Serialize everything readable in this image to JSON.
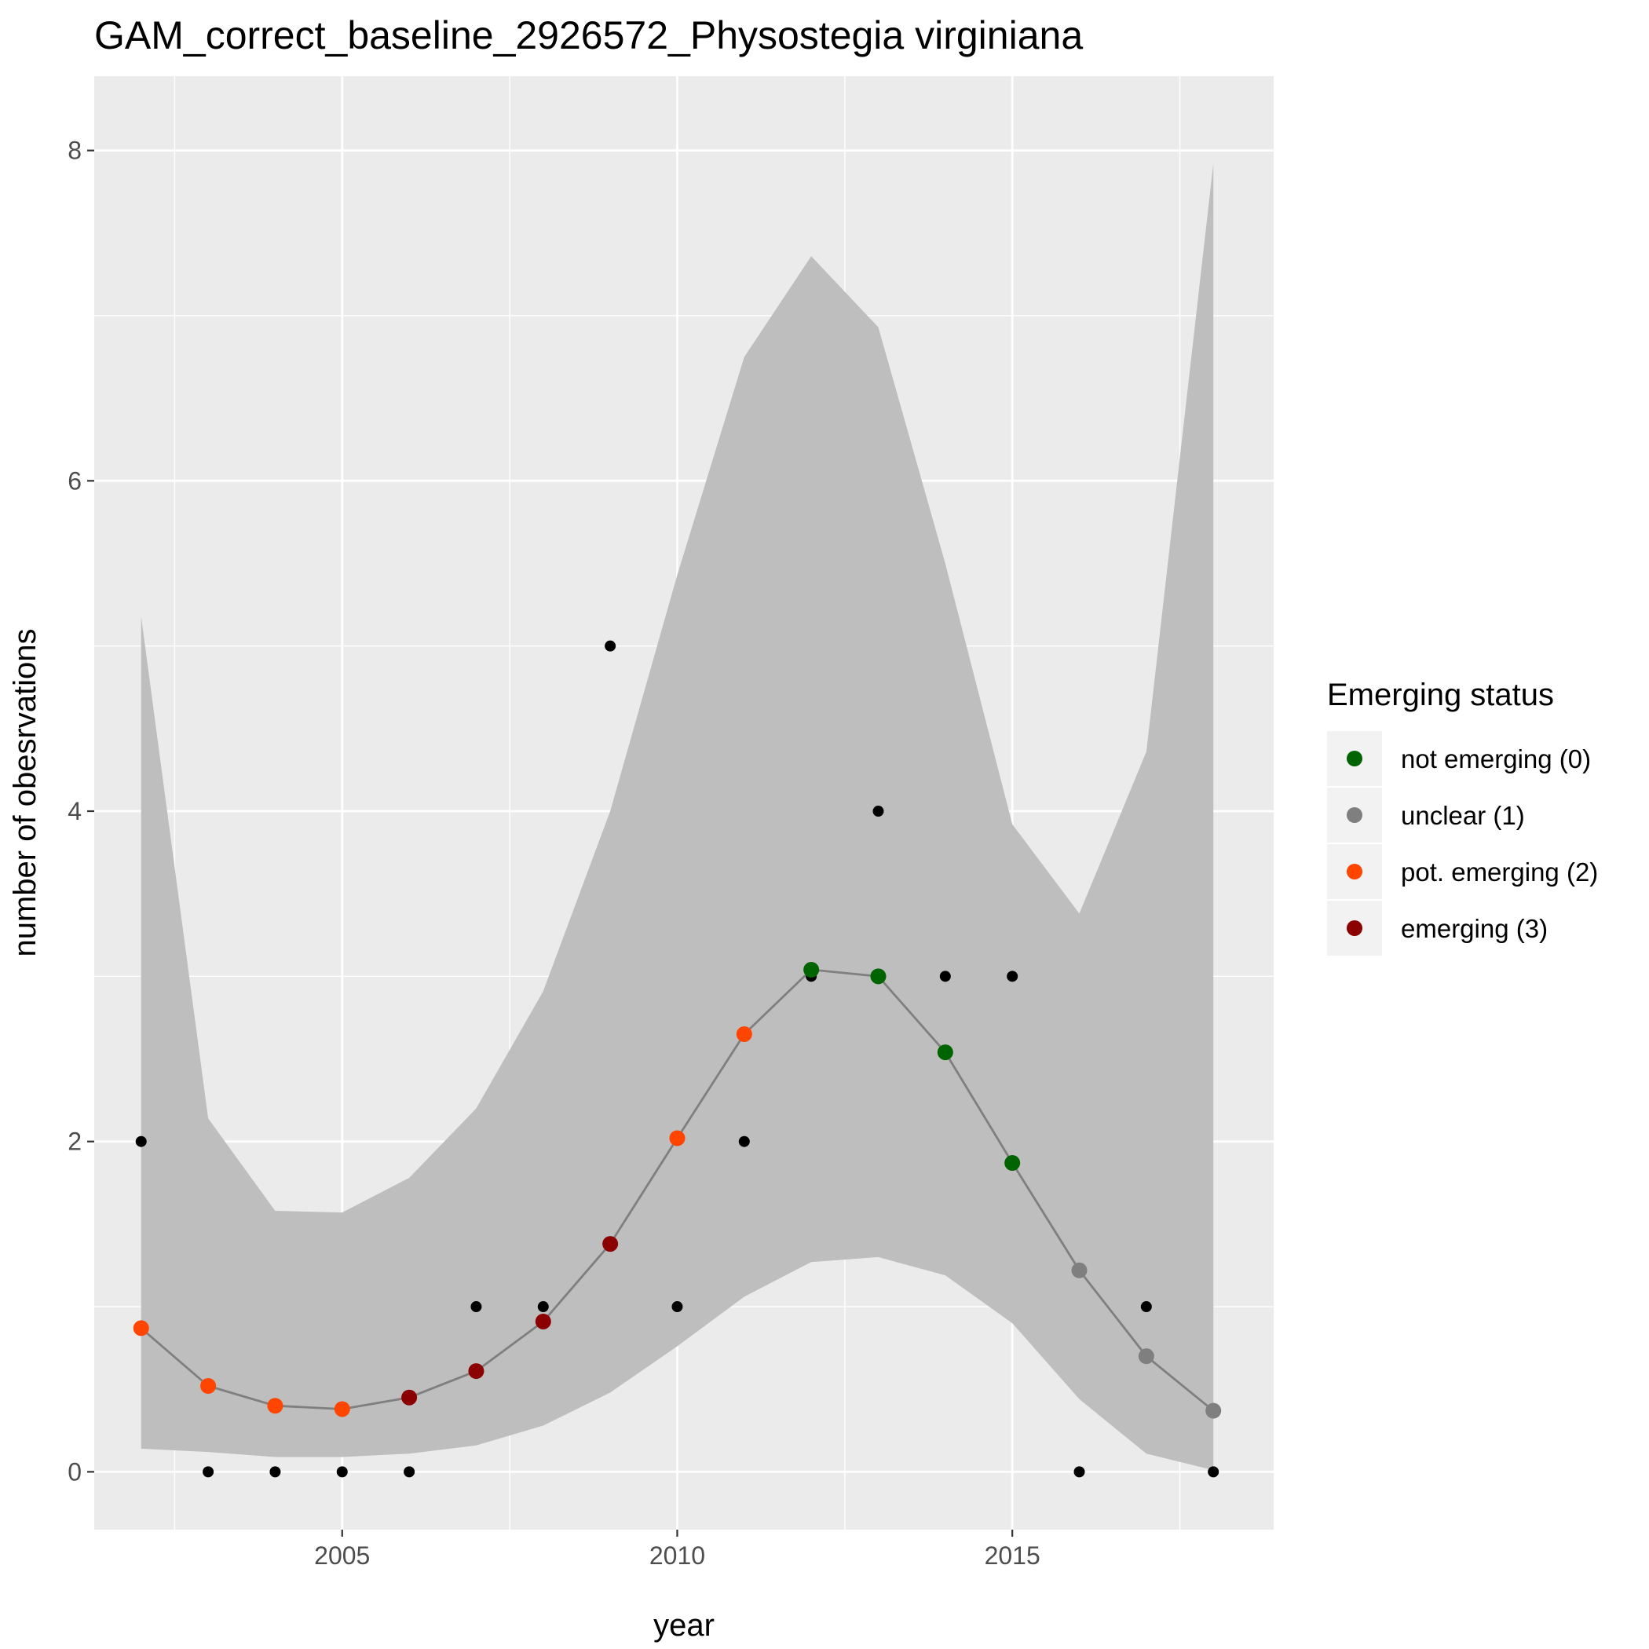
{
  "chart_data": {
    "type": "line",
    "title": "GAM_correct_baseline_2926572_Physostegia virginiana",
    "xlabel": "year",
    "ylabel": "number of obesrvations",
    "xlim": [
      2001.3,
      2018.9
    ],
    "ylim": [
      -0.35,
      8.45
    ],
    "x_ticks": [
      2005,
      2010,
      2015
    ],
    "y_ticks": [
      0,
      2,
      4,
      6,
      8
    ],
    "grid": true,
    "panel_background": "#ebebeb",
    "grid_color": "#ffffff",
    "observed": {
      "color": "#000000",
      "x": [
        2002,
        2003,
        2004,
        2005,
        2006,
        2007,
        2008,
        2009,
        2010,
        2011,
        2012,
        2013,
        2014,
        2015,
        2016,
        2017,
        2018
      ],
      "y": [
        2,
        0,
        0,
        0,
        0,
        1,
        1,
        5,
        1,
        2,
        3,
        4,
        3,
        3,
        0,
        1,
        0
      ]
    },
    "fitted": {
      "line_color": "#7f7f7f",
      "x": [
        2002,
        2003,
        2004,
        2005,
        2006,
        2007,
        2008,
        2009,
        2010,
        2011,
        2012,
        2013,
        2014,
        2015,
        2016,
        2017,
        2018
      ],
      "y": [
        0.87,
        0.52,
        0.4,
        0.38,
        0.45,
        0.61,
        0.91,
        1.38,
        2.02,
        2.65,
        3.04,
        3.0,
        2.54,
        1.87,
        1.22,
        0.7,
        0.37
      ],
      "status": [
        2,
        2,
        2,
        2,
        3,
        3,
        3,
        3,
        2,
        2,
        0,
        0,
        0,
        0,
        1,
        1,
        1
      ]
    },
    "ribbon": {
      "fill": "#bebebe",
      "x": [
        2002,
        2003,
        2004,
        2005,
        2006,
        2007,
        2008,
        2009,
        2010,
        2011,
        2012,
        2013,
        2014,
        2015,
        2016,
        2017,
        2018
      ],
      "lower": [
        0.14,
        0.12,
        0.09,
        0.09,
        0.11,
        0.16,
        0.28,
        0.48,
        0.76,
        1.06,
        1.27,
        1.3,
        1.19,
        0.9,
        0.44,
        0.11,
        0.01
      ],
      "upper": [
        5.18,
        2.14,
        1.58,
        1.57,
        1.78,
        2.2,
        2.91,
        4.0,
        5.43,
        6.75,
        7.36,
        6.93,
        5.5,
        3.92,
        3.38,
        4.36,
        7.92
      ]
    },
    "legend": {
      "title": "Emerging status",
      "placement": "right",
      "items": [
        {
          "label": "not emerging (0)",
          "status": 0,
          "color": "#006400"
        },
        {
          "label": "unclear (1)",
          "status": 1,
          "color": "#7f7f7f"
        },
        {
          "label": "pot. emerging (2)",
          "status": 2,
          "color": "#ff4500"
        },
        {
          "label": "emerging (3)",
          "status": 3,
          "color": "#8b0000"
        }
      ]
    }
  }
}
